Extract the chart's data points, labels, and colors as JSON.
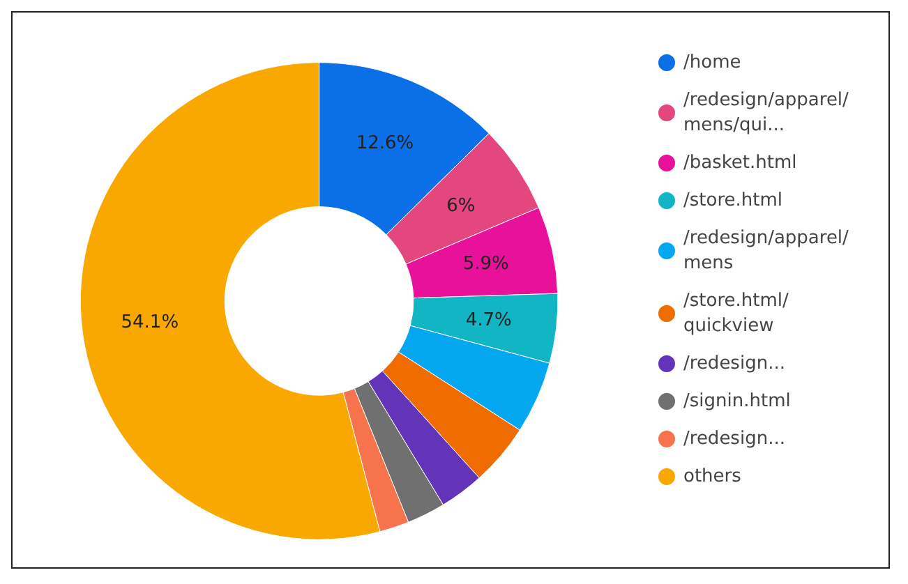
{
  "chart_data": {
    "type": "donut",
    "categories": [
      "/home",
      "/redesign/apparel/mens/qui...",
      "/basket.html",
      "/store.html",
      "/redesign/apparel/mens",
      "/store.html/quickview",
      "/redesign...",
      "/signin.html",
      "/redesign...",
      "others"
    ],
    "values": [
      12.6,
      6,
      5.9,
      4.7,
      4.9,
      4.2,
      3.0,
      2.6,
      2.0,
      54.1
    ],
    "value_labels": [
      "12.6%",
      "6%",
      "5.9%",
      "4.7%",
      null,
      null,
      null,
      null,
      null,
      "54.1%"
    ],
    "colors": [
      "#0b6fe8",
      "#e4467e",
      "#e8119a",
      "#12b5c3",
      "#05a8f0",
      "#ef6c00",
      "#6434b8",
      "#707070",
      "#f7734e",
      "#f9a800"
    ],
    "legend": "right"
  }
}
